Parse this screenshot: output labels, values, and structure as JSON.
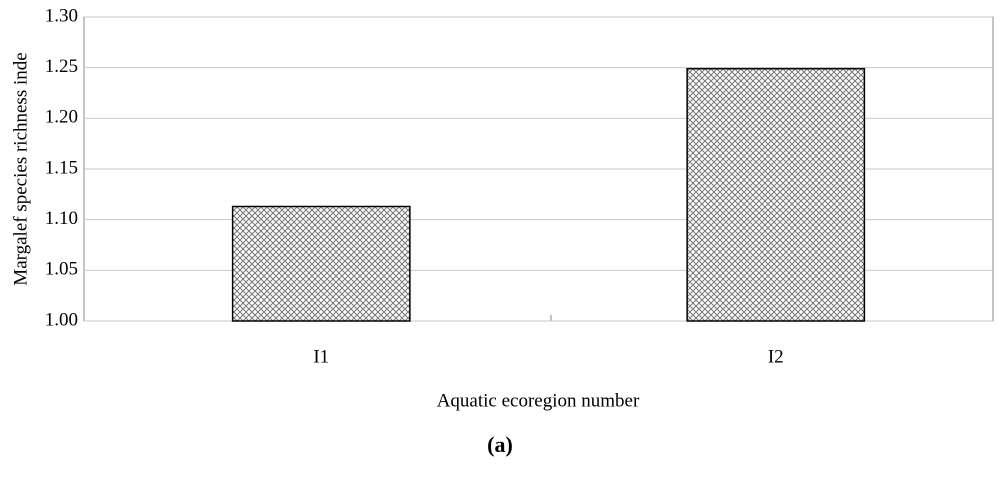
{
  "chart_data": {
    "type": "bar",
    "categories": [
      "I1",
      "I2"
    ],
    "values": [
      1.113,
      1.249
    ],
    "ylim": [
      1.0,
      1.3
    ],
    "yticks": [
      {
        "value": 1.0,
        "label": "1.00"
      },
      1.05,
      {
        "value": 1.1,
        "label": "1.10"
      },
      1.15,
      {
        "value": 1.2,
        "label": "1.20"
      },
      1.25,
      {
        "value": 1.3,
        "label": "1.30"
      }
    ],
    "grid": true,
    "y_label": "Margalef species richness inde",
    "x_label": "Aquatic ecoregion number",
    "caption": "(a)"
  }
}
